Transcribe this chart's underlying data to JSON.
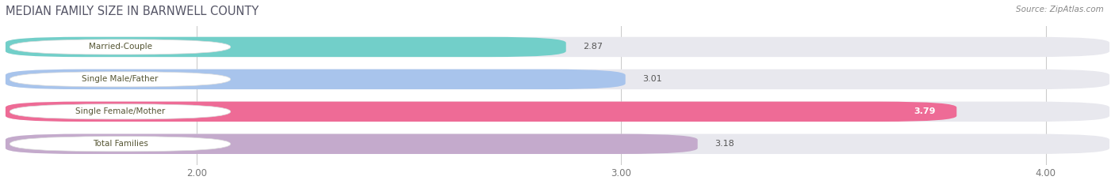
{
  "title": "MEDIAN FAMILY SIZE IN BARNWELL COUNTY",
  "source": "Source: ZipAtlas.com",
  "categories": [
    "Married-Couple",
    "Single Male/Father",
    "Single Female/Mother",
    "Total Families"
  ],
  "values": [
    2.87,
    3.01,
    3.79,
    3.18
  ],
  "bar_colors": [
    "#72CFC9",
    "#A8C4EC",
    "#EE6B96",
    "#C4AACC"
  ],
  "bar_bg_color": "#E8E8EE",
  "xlim_min": 1.55,
  "xlim_max": 4.15,
  "xticks": [
    2.0,
    3.0,
    4.0
  ],
  "xtick_labels": [
    "2.00",
    "3.00",
    "4.00"
  ],
  "bar_height": 0.62,
  "label_pill_color": "#FFFFFF",
  "label_text_color": "#555533",
  "value_color_inside": "#FFFFFF",
  "value_color_outside": "#555555",
  "figsize": [
    14.06,
    2.33
  ],
  "dpi": 100,
  "bg_color": "#FFFFFF",
  "title_color": "#555566",
  "source_color": "#888888",
  "grid_color": "#CCCCCC"
}
